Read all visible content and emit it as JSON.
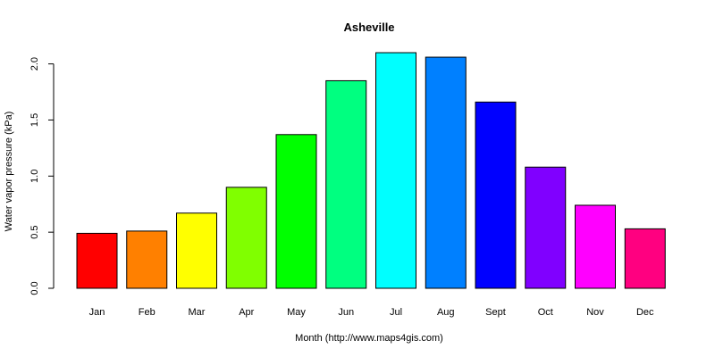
{
  "chart_data": {
    "type": "bar",
    "title": "Asheville",
    "xlabel": "Month (http://www.maps4gis.com)",
    "ylabel": "Water vapor pressure (kPa)",
    "categories": [
      "Jan",
      "Feb",
      "Mar",
      "Apr",
      "May",
      "Jun",
      "Jul",
      "Aug",
      "Sept",
      "Oct",
      "Nov",
      "Dec"
    ],
    "values": [
      0.49,
      0.51,
      0.67,
      0.9,
      1.37,
      1.85,
      2.1,
      2.06,
      1.66,
      1.08,
      0.74,
      0.53
    ],
    "colors": [
      "#ff0000",
      "#ff8000",
      "#ffff00",
      "#80ff00",
      "#00ff00",
      "#00ff80",
      "#00ffff",
      "#0080ff",
      "#0000ff",
      "#8000ff",
      "#ff00ff",
      "#ff0080"
    ],
    "yticks": [
      "0.0",
      "0.5",
      "1.0",
      "1.5",
      "2.0"
    ],
    "ylim": [
      0,
      2.1
    ],
    "grid": false,
    "legend": "none"
  }
}
